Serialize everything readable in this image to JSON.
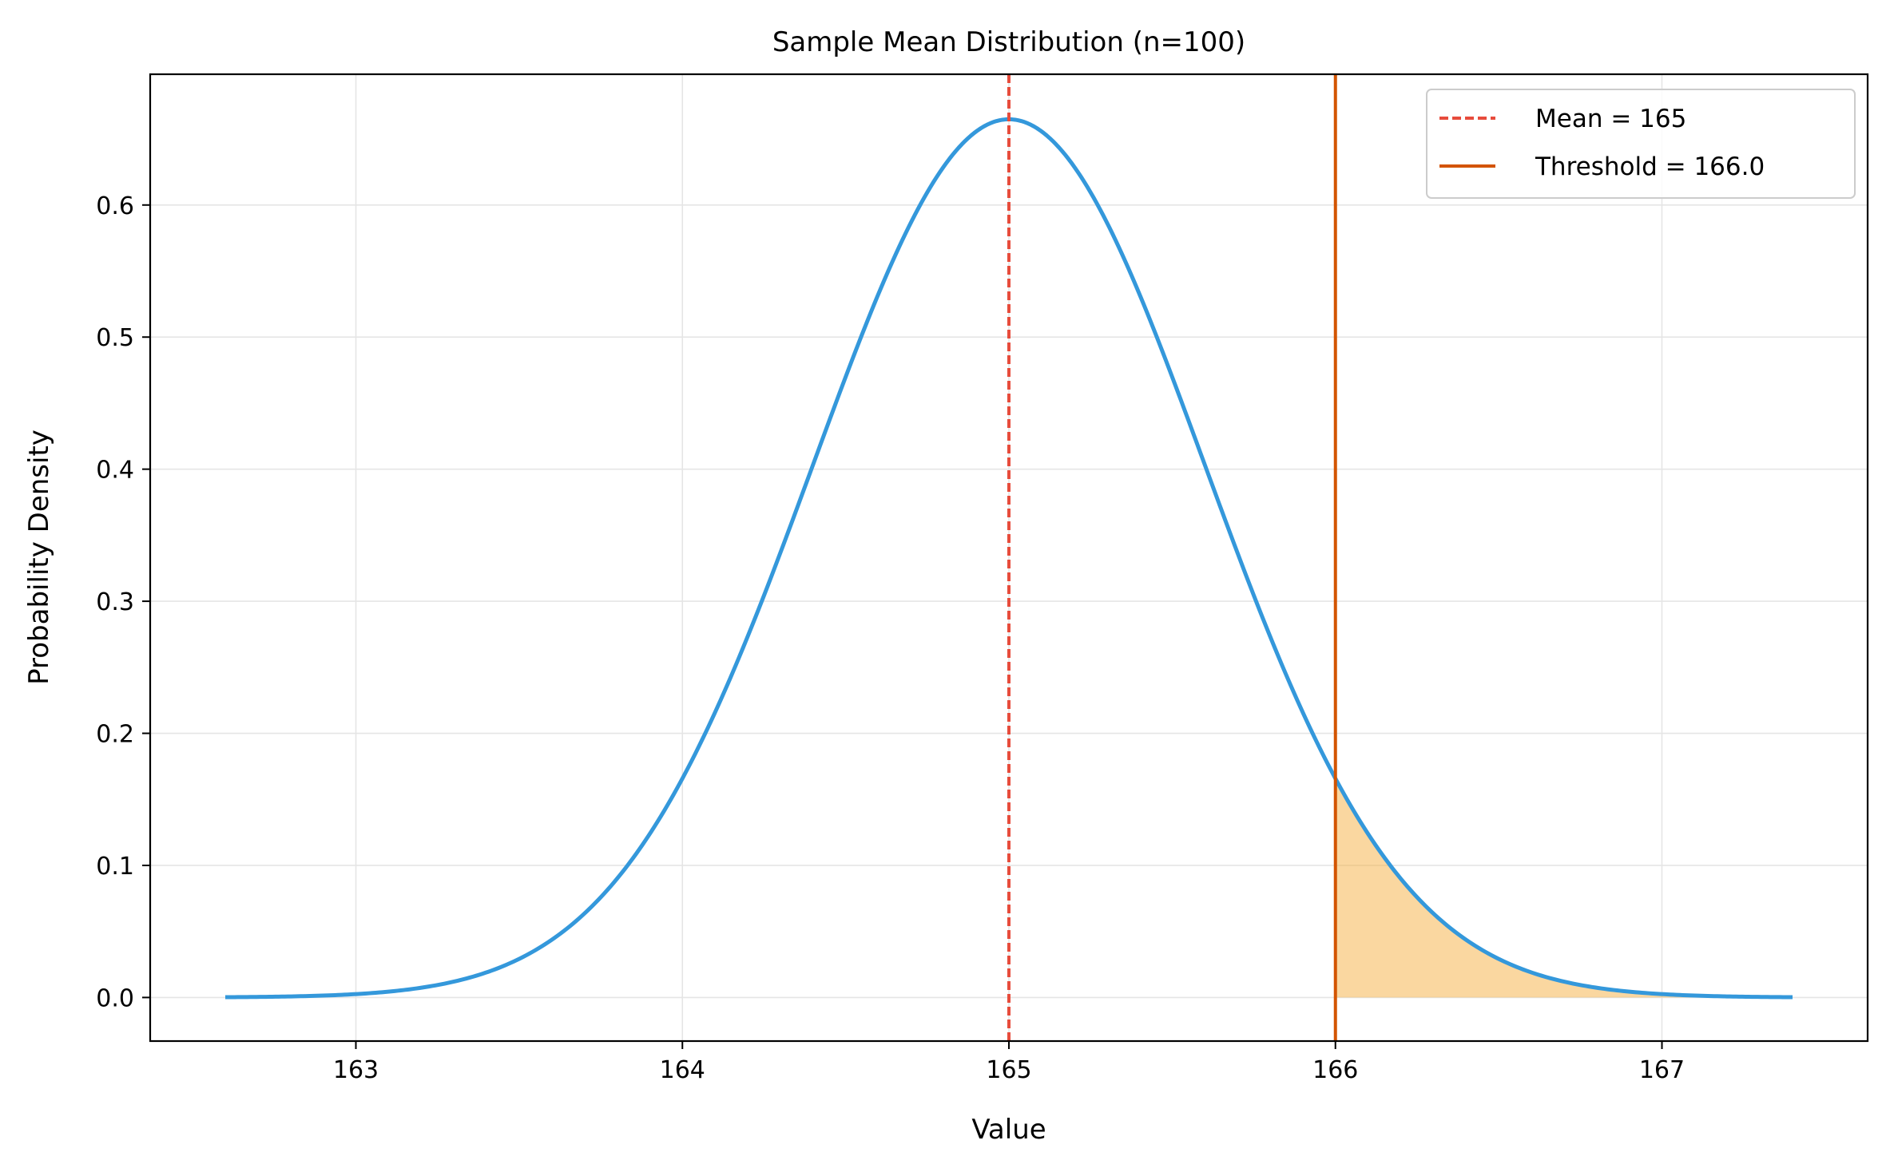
{
  "chart_data": {
    "type": "line",
    "title": "Sample Mean Distribution (n=100)",
    "xlabel": "Value",
    "ylabel": "Probability Density",
    "xlim": [
      162.37,
      167.63
    ],
    "ylim": [
      -0.033,
      0.699
    ],
    "xticks": [
      163,
      164,
      165,
      166,
      167
    ],
    "xtick_labels": [
      "163",
      "164",
      "165",
      "166",
      "167"
    ],
    "yticks": [
      0.0,
      0.1,
      0.2,
      0.3,
      0.4,
      0.5,
      0.6
    ],
    "ytick_labels": [
      "0.0",
      "0.1",
      "0.2",
      "0.3",
      "0.4",
      "0.5",
      "0.6"
    ],
    "grid": true,
    "legend_position": "top-right",
    "curve": {
      "name": "",
      "color": "#3498db",
      "distribution": "normal",
      "mean": 165,
      "std": 0.6,
      "x_range": [
        162.6,
        167.4
      ]
    },
    "vlines": [
      {
        "name": "Mean = 165",
        "x": 165,
        "color": "#e74c3c",
        "style": "dashed"
      },
      {
        "name": "Threshold = 166.0",
        "x": 166.0,
        "color": "#d35400",
        "style": "solid"
      }
    ],
    "shaded_region": {
      "from": 166.0,
      "to": 167.4,
      "color": "#f5b041",
      "opacity": 0.5
    }
  }
}
